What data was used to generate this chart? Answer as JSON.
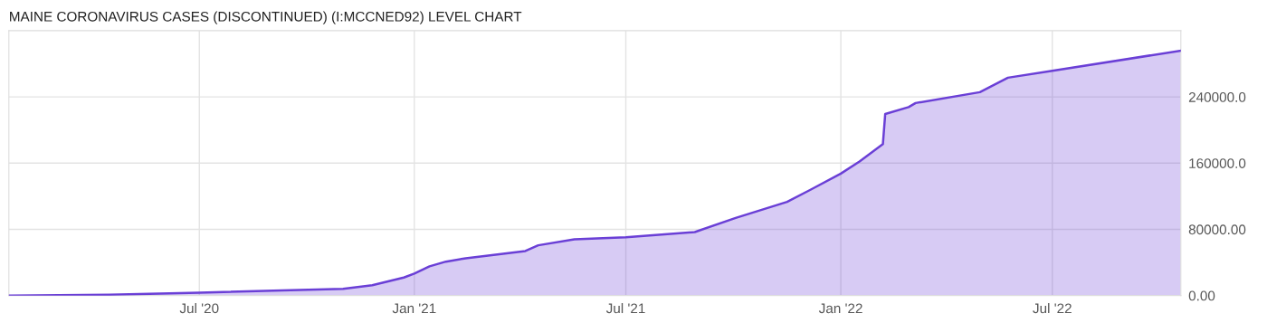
{
  "chart_data": {
    "type": "area",
    "title": "MAINE CORONAVIRUS CASES (DISCONTINUED) (I:MCCNED92) LEVEL CHART",
    "x": [
      "2020-01-20",
      "2020-04-15",
      "2020-07-01",
      "2020-11-01",
      "2020-11-26",
      "2020-12-23",
      "2021-01-01",
      "2021-01-14",
      "2021-01-28",
      "2021-02-14",
      "2021-04-06",
      "2021-04-17",
      "2021-05-18",
      "2021-07-01",
      "2021-08-29",
      "2021-10-03",
      "2021-11-16",
      "2021-12-06",
      "2022-01-01",
      "2022-01-17",
      "2022-02-06",
      "2022-02-08",
      "2022-02-28",
      "2022-03-06",
      "2022-04-30",
      "2022-05-24",
      "2022-07-01",
      "2022-10-19"
    ],
    "series": [
      {
        "color": "#6a3fd6",
        "values": [
          0,
          1000,
          3500,
          8000,
          12400,
          21800,
          26500,
          35300,
          41000,
          45000,
          53800,
          60700,
          68000,
          70400,
          76700,
          93800,
          113200,
          127800,
          147300,
          162000,
          182900,
          219400,
          227700,
          232600,
          245700,
          263200,
          271500,
          295900
        ]
      }
    ],
    "xlim": [
      "2020-01-20",
      "2022-10-19"
    ],
    "xticks": [
      {
        "value": "2020-07-01",
        "label": "Jul '20"
      },
      {
        "value": "2021-01-01",
        "label": "Jan '21"
      },
      {
        "value": "2021-07-01",
        "label": "Jul '21"
      },
      {
        "value": "2022-01-01",
        "label": "Jan '22"
      },
      {
        "value": "2022-07-01",
        "label": "Jul '22"
      }
    ],
    "ylim": [
      0,
      320000
    ],
    "yticks": [
      {
        "value": 0,
        "label": "0.00"
      },
      {
        "value": 80000,
        "label": "80000.00"
      },
      {
        "value": 160000,
        "label": "160000.0"
      },
      {
        "value": 240000,
        "label": "240000.0"
      }
    ],
    "grid": true
  }
}
